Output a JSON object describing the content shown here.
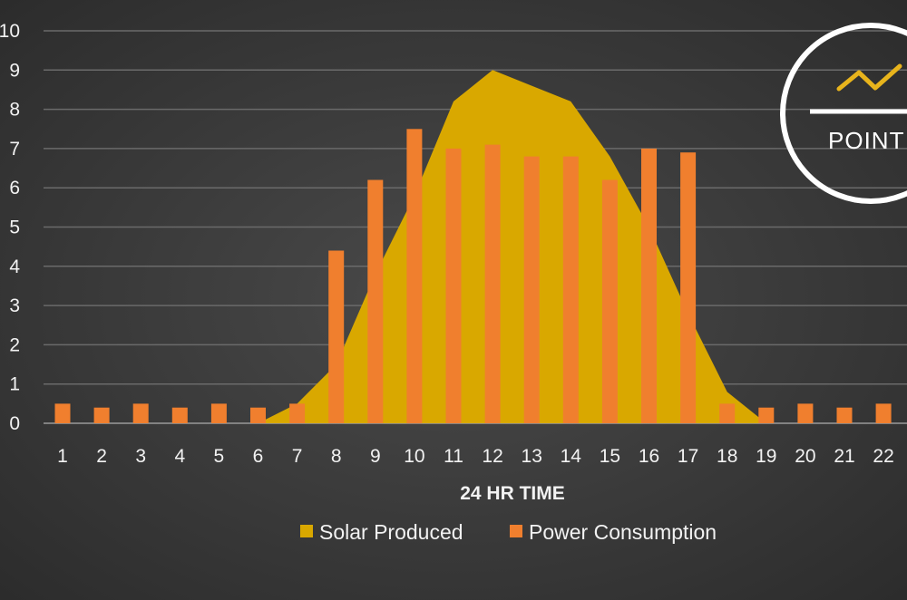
{
  "chart_data": {
    "type": "bar",
    "categories": [
      "1",
      "2",
      "3",
      "4",
      "5",
      "6",
      "7",
      "8",
      "9",
      "10",
      "11",
      "12",
      "13",
      "14",
      "15",
      "16",
      "17",
      "18",
      "19",
      "20",
      "21",
      "22"
    ],
    "series": [
      {
        "name": "Solar Produced",
        "render": "area",
        "color": "#d9a800",
        "x": [
          6,
          7,
          8,
          9,
          10,
          11,
          12,
          13,
          14,
          15,
          16,
          17,
          18,
          19
        ],
        "values": [
          0,
          0.5,
          1.5,
          3.8,
          5.8,
          8.2,
          9.0,
          8.6,
          8.2,
          6.8,
          5.0,
          2.8,
          0.8,
          0
        ]
      },
      {
        "name": "Power Consumption",
        "render": "bar",
        "color": "#f07f2e",
        "values": [
          0.5,
          0.4,
          0.5,
          0.4,
          0.5,
          0.4,
          0.5,
          4.4,
          6.2,
          7.5,
          7.0,
          7.1,
          6.8,
          6.8,
          6.2,
          7.0,
          6.9,
          0.5,
          0.4,
          0.5,
          0.4,
          0.5
        ]
      }
    ],
    "xlabel": "24 HR TIME",
    "ylabel": "",
    "ylim": [
      0,
      10
    ],
    "yticks": [
      0,
      1,
      2,
      3,
      4,
      5,
      6,
      7,
      8,
      9,
      10
    ],
    "grid": true,
    "legend": "bottom",
    "background": "#3d3d3d"
  },
  "logo": {
    "text": "POINT",
    "accent_color": "#e8b41c"
  }
}
